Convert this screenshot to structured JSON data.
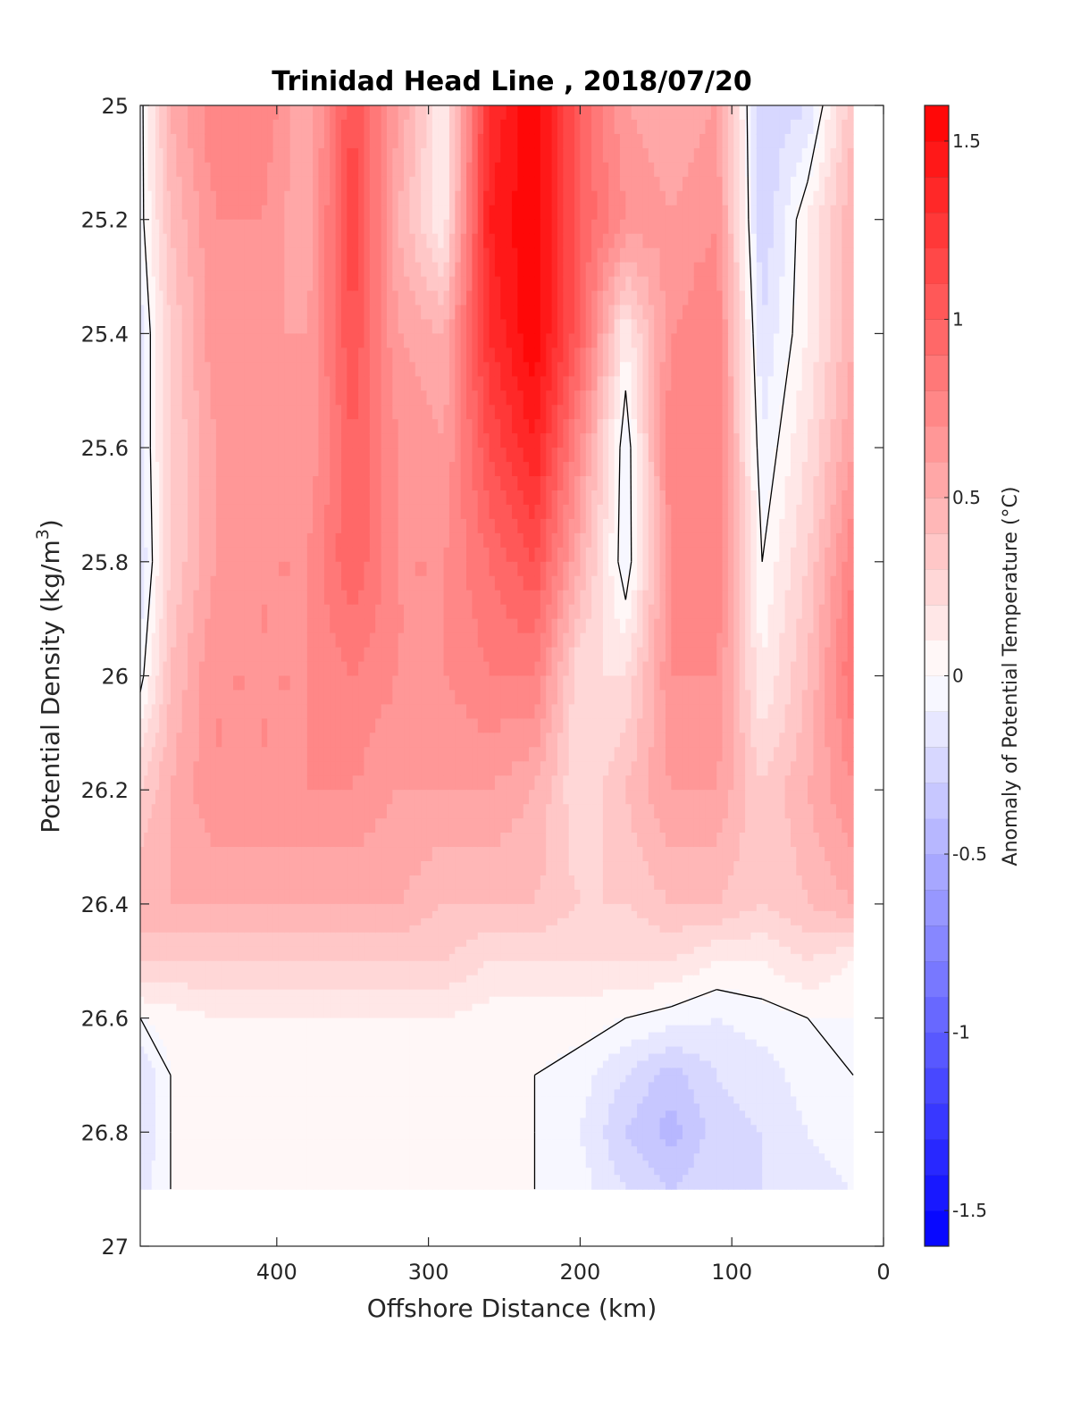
{
  "chart_data": {
    "type": "heatmap",
    "title": "Trinidad Head Line , 2018/07/20",
    "xlabel": "Offshore Distance (km)",
    "ylabel": "Potential Density (kg/m3)",
    "ylabel_base": "Potential Density (kg/m",
    "ylabel_sup": "3",
    "ylabel_tail": ")",
    "xlim": [
      490,
      0
    ],
    "ylim": [
      25,
      27
    ],
    "x_reversed": true,
    "y_reversed": true,
    "xticks": [
      400,
      300,
      200,
      100,
      0
    ],
    "xtick_labels": [
      "400",
      "300",
      "200",
      "100",
      "0"
    ],
    "yticks": [
      25,
      25.2,
      25.4,
      25.6,
      25.8,
      26,
      26.2,
      26.4,
      26.6,
      26.8,
      27
    ],
    "ytick_labels": [
      "25",
      "25.2",
      "25.4",
      "25.6",
      "25.8",
      "26",
      "26.2",
      "26.4",
      "26.6",
      "26.8",
      "27"
    ],
    "colorbar": {
      "label": "Anomaly of Potential Temperature (°C)",
      "range": [
        -1.6,
        1.6
      ],
      "step": 0.1,
      "ticks": [
        1.5,
        1,
        0.5,
        0,
        -0.5,
        -1,
        -1.5
      ],
      "tick_labels": [
        "1.5",
        "1",
        "0.5",
        "0",
        "-0.5",
        "-1",
        "-1.5"
      ],
      "colormap": "blue-white-red",
      "color_low": "#0000ff",
      "color_mid": "#ffffff",
      "color_high": "#ff0000"
    },
    "data_extent": {
      "x": [
        490,
        20
      ],
      "y": [
        25,
        26.9
      ]
    },
    "grid": false,
    "contour_line_color": "#000000",
    "grid_x": [
      490,
      470,
      440,
      410,
      380,
      350,
      320,
      290,
      260,
      230,
      200,
      170,
      140,
      110,
      80,
      50,
      20
    ],
    "grid_y": [
      25.0,
      25.2,
      25.4,
      25.6,
      25.8,
      26.0,
      26.2,
      26.4,
      26.5,
      26.6,
      26.7,
      26.8,
      26.9
    ],
    "values": [
      [
        -0.05,
        0.5,
        0.8,
        0.8,
        0.5,
        1.1,
        0.6,
        0.1,
        1.3,
        1.6,
        1.0,
        0.6,
        0.5,
        0.6,
        -0.3,
        -0.2,
        0.4
      ],
      [
        -0.05,
        0.4,
        0.7,
        0.7,
        0.5,
        1.2,
        0.5,
        0.1,
        1.4,
        1.6,
        1.0,
        0.7,
        0.6,
        0.7,
        -0.3,
        0.1,
        0.5
      ],
      [
        -0.15,
        0.3,
        0.7,
        0.6,
        0.6,
        1.1,
        0.6,
        0.5,
        1.3,
        1.6,
        1.0,
        0.1,
        0.7,
        0.8,
        -0.2,
        0.1,
        0.5
      ],
      [
        -0.15,
        0.3,
        0.6,
        0.6,
        0.6,
        1.0,
        0.7,
        0.6,
        1.1,
        1.4,
        0.7,
        -0.1,
        0.8,
        0.8,
        -0.1,
        0.2,
        0.6
      ],
      [
        -0.2,
        0.3,
        0.6,
        0.7,
        0.7,
        1.0,
        0.7,
        0.7,
        0.9,
        1.1,
        0.5,
        -0.1,
        0.7,
        0.8,
        0.0,
        0.3,
        0.8
      ],
      [
        -0.05,
        0.4,
        0.7,
        0.7,
        0.7,
        0.8,
        0.7,
        0.7,
        0.8,
        0.8,
        0.2,
        0.2,
        0.7,
        0.7,
        0.1,
        0.4,
        0.9
      ],
      [
        0.3,
        0.5,
        0.7,
        0.7,
        0.7,
        0.7,
        0.6,
        0.6,
        0.6,
        0.5,
        0.2,
        0.4,
        0.6,
        0.6,
        0.3,
        0.5,
        0.7
      ],
      [
        0.5,
        0.5,
        0.5,
        0.5,
        0.5,
        0.5,
        0.5,
        0.4,
        0.4,
        0.4,
        0.3,
        0.3,
        0.4,
        0.4,
        0.3,
        0.4,
        0.5
      ],
      [
        0.3,
        0.3,
        0.3,
        0.3,
        0.3,
        0.3,
        0.3,
        0.3,
        0.2,
        0.2,
        0.2,
        0.2,
        0.2,
        0.1,
        0.1,
        0.2,
        0.1
      ],
      [
        0.0,
        0.05,
        0.1,
        0.1,
        0.1,
        0.1,
        0.1,
        0.1,
        0.05,
        0.05,
        0.05,
        0.0,
        -0.05,
        -0.1,
        -0.05,
        0.0,
        0.0
      ],
      [
        -0.2,
        0.0,
        0.05,
        0.05,
        0.05,
        0.05,
        0.0,
        0.05,
        0.0,
        0.0,
        -0.05,
        -0.2,
        -0.35,
        -0.2,
        -0.15,
        -0.05,
        0.0
      ],
      [
        -0.2,
        0.0,
        0.05,
        0.05,
        0.1,
        0.05,
        0.0,
        0.0,
        0.0,
        0.0,
        -0.1,
        -0.3,
        -0.45,
        -0.25,
        -0.2,
        -0.1,
        -0.05
      ],
      [
        -0.15,
        0.0,
        0.05,
        0.05,
        0.05,
        0.05,
        0.0,
        0.0,
        0.05,
        0.0,
        -0.05,
        -0.2,
        -0.3,
        -0.2,
        -0.2,
        -0.15,
        -0.1
      ]
    ]
  }
}
